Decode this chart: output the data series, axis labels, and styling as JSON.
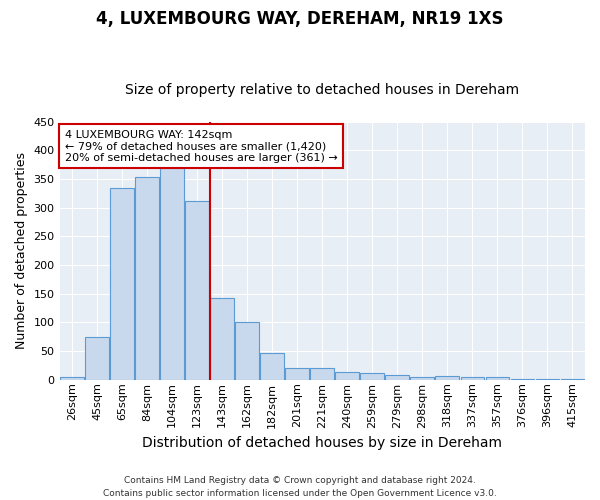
{
  "title": "4, LUXEMBOURG WAY, DEREHAM, NR19 1XS",
  "subtitle": "Size of property relative to detached houses in Dereham",
  "xlabel": "Distribution of detached houses by size in Dereham",
  "ylabel": "Number of detached properties",
  "bar_labels": [
    "26sqm",
    "45sqm",
    "65sqm",
    "84sqm",
    "104sqm",
    "123sqm",
    "143sqm",
    "162sqm",
    "182sqm",
    "201sqm",
    "221sqm",
    "240sqm",
    "259sqm",
    "279sqm",
    "298sqm",
    "318sqm",
    "337sqm",
    "357sqm",
    "376sqm",
    "396sqm",
    "415sqm"
  ],
  "bar_values": [
    5,
    74,
    334,
    354,
    369,
    311,
    143,
    100,
    46,
    20,
    20,
    13,
    11,
    9,
    4,
    6,
    4,
    4,
    1,
    1,
    1
  ],
  "bar_color": "#c9d9ed",
  "bar_edge_color": "#5b9bd5",
  "background_color": "#e8eef5",
  "grid_color": "#ffffff",
  "vline_color": "#cc0000",
  "annotation_line1": "4 LUXEMBOURG WAY: 142sqm",
  "annotation_line2": "← 79% of detached houses are smaller (1,420)",
  "annotation_line3": "20% of semi-detached houses are larger (361) →",
  "annotation_box_color": "#ffffff",
  "annotation_box_edge": "#cc0000",
  "ylim": [
    0,
    450
  ],
  "footer_line1": "Contains HM Land Registry data © Crown copyright and database right 2024.",
  "footer_line2": "Contains public sector information licensed under the Open Government Licence v3.0.",
  "title_fontsize": 12,
  "subtitle_fontsize": 10,
  "tick_fontsize": 8,
  "ylabel_fontsize": 9,
  "xlabel_fontsize": 10,
  "annotation_fontsize": 8,
  "footer_fontsize": 6.5
}
